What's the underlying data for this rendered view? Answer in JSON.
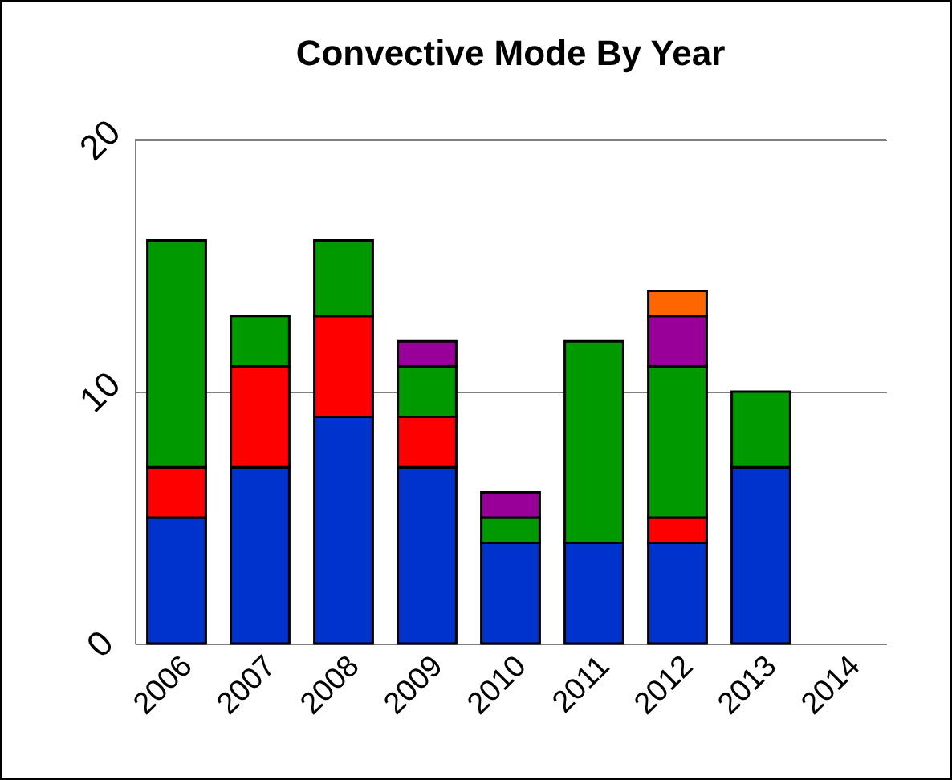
{
  "chart_data": {
    "type": "bar",
    "title": "Convective Mode By Year",
    "categories": [
      "2006",
      "2007",
      "2008",
      "2009",
      "2010",
      "2011",
      "2012",
      "2013",
      "2014"
    ],
    "stacked": true,
    "series": [
      {
        "color": "#0033cc",
        "values": [
          5,
          7,
          9,
          7,
          4,
          4,
          4,
          7,
          null
        ]
      },
      {
        "color": "#ff0000",
        "values": [
          2,
          4,
          4,
          2,
          null,
          null,
          1,
          null,
          null
        ]
      },
      {
        "color": "#009900",
        "values": [
          9,
          2,
          3,
          2,
          1,
          8,
          6,
          3,
          null
        ]
      },
      {
        "color": "#990099",
        "values": [
          null,
          null,
          null,
          1,
          1,
          null,
          2,
          null,
          null
        ]
      },
      {
        "color": "#ff6600",
        "values": [
          null,
          null,
          null,
          null,
          null,
          null,
          1,
          null,
          null
        ]
      }
    ],
    "ylim": [
      0,
      20
    ],
    "yticks": [
      0,
      10,
      20
    ],
    "grid": "y",
    "legend": false
  }
}
